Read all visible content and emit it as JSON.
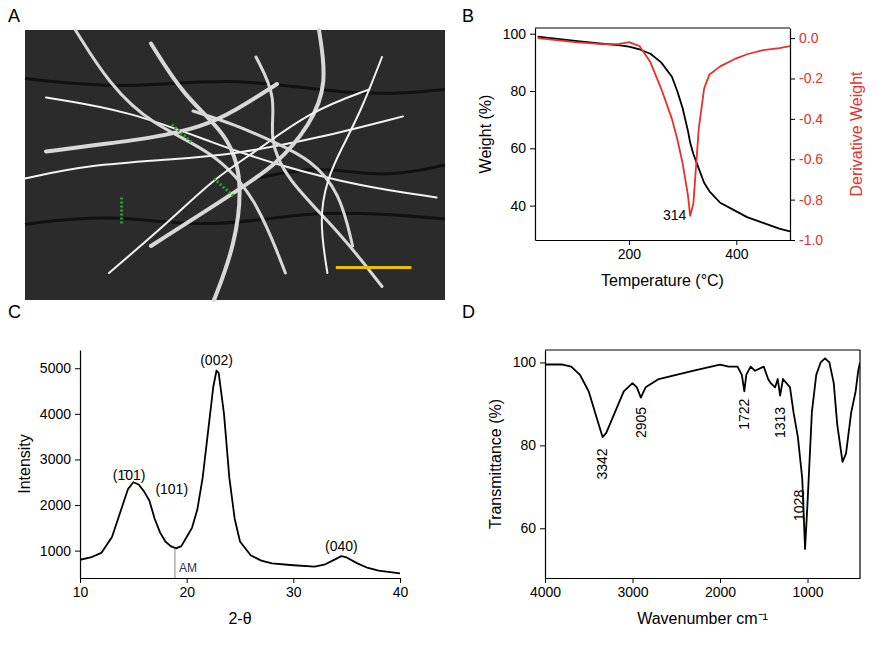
{
  "chart_data": [
    {
      "type": "image",
      "panel_label": "A"
    },
    {
      "type": "line",
      "panel_label": "B",
      "x_label": "Temperature (°C)",
      "y_label": "Weight (%)",
      "y2_label": "Derivative Weight",
      "x": [
        30,
        100,
        150,
        180,
        200,
        220,
        240,
        260,
        280,
        290,
        300,
        310,
        314,
        320,
        330,
        340,
        350,
        370,
        400,
        420,
        450,
        480,
        500
      ],
      "series": [
        {
          "color": "#000000",
          "values": [
            99,
            97.5,
            96.5,
            96,
            95.5,
            94.5,
            93,
            90,
            85,
            80,
            74,
            66,
            62,
            58,
            53,
            48,
            45,
            41,
            38,
            36,
            34,
            32,
            31
          ]
        },
        {
          "color": "#e8302c",
          "axis": "y2",
          "values": [
            0,
            -0.02,
            -0.03,
            -0.03,
            -0.02,
            -0.04,
            -0.12,
            -0.25,
            -0.4,
            -0.5,
            -0.62,
            -0.78,
            -0.88,
            -0.82,
            -0.45,
            -0.25,
            -0.18,
            -0.14,
            -0.1,
            -0.08,
            -0.06,
            -0.05,
            -0.04
          ]
        }
      ],
      "xlim": [
        25,
        500
      ],
      "xticks": [
        200,
        400
      ],
      "ylim": [
        28,
        102
      ],
      "yticks": [
        40,
        60,
        80,
        100
      ],
      "y2lim": [
        -1.0,
        0.05
      ],
      "y2ticks": [
        {
          "value": 0,
          "label": "0.0"
        },
        -0.2,
        -0.4,
        -0.6,
        -0.8,
        {
          "value": -1,
          "label": "-1.0"
        }
      ],
      "annotations": [
        {
          "text": "314",
          "x": 307,
          "y": 35
        }
      ]
    },
    {
      "type": "line",
      "panel_label": "C",
      "x_label": "2-θ",
      "y_label": "Intensity",
      "x": [
        10,
        11,
        12,
        13,
        14,
        14.5,
        15,
        15.5,
        16,
        16.5,
        17,
        17.5,
        18,
        18.5,
        19,
        19.5,
        20,
        20.5,
        21,
        21.5,
        22,
        22.5,
        22.8,
        23,
        23.5,
        24,
        24.5,
        25,
        26,
        27,
        28,
        30,
        32,
        33,
        34,
        34.5,
        35,
        36,
        37,
        38,
        40
      ],
      "series": [
        {
          "color": "#000000",
          "values": [
            800,
            850,
            950,
            1300,
            2000,
            2350,
            2500,
            2450,
            2300,
            2100,
            1700,
            1400,
            1200,
            1100,
            1050,
            1100,
            1300,
            1500,
            1900,
            2600,
            3600,
            4600,
            4950,
            4900,
            4000,
            2600,
            1700,
            1200,
            900,
            780,
            720,
            680,
            650,
            700,
            820,
            880,
            850,
            720,
            620,
            560,
            500
          ]
        }
      ],
      "xlim": [
        10,
        40
      ],
      "xticks": [
        10,
        20,
        30,
        40
      ],
      "ylim": [
        400,
        5400
      ],
      "yticks": [
        1000,
        2000,
        3000,
        4000,
        5000
      ],
      "annotations": [
        {
          "text": "(1̄01)",
          "x": 14.6,
          "y": 2550
        },
        {
          "text": "(101)",
          "x": 18.6,
          "y": 2250
        },
        {
          "text": "(002)",
          "x": 22.8,
          "y": 5080
        },
        {
          "text": "(040)",
          "x": 34.5,
          "y": 1000
        },
        {
          "text": "AM",
          "x": 18.9,
          "y": 1050,
          "line": true
        }
      ]
    },
    {
      "type": "line",
      "panel_label": "D",
      "x_label": "Wavenumber cm⁻¹",
      "y_label": "Transmittance (%)",
      "x": [
        4000,
        3800,
        3700,
        3600,
        3500,
        3400,
        3342,
        3300,
        3200,
        3100,
        3000,
        2950,
        2905,
        2850,
        2700,
        2500,
        2300,
        2100,
        2000,
        1900,
        1800,
        1750,
        1722,
        1700,
        1650,
        1600,
        1500,
        1450,
        1420,
        1370,
        1340,
        1313,
        1280,
        1200,
        1160,
        1110,
        1060,
        1028,
        1000,
        950,
        900,
        850,
        800,
        750,
        700,
        660,
        620,
        600,
        560,
        530,
        500,
        450,
        420,
        400
      ],
      "series": [
        {
          "color": "#000000",
          "values": [
            99.5,
            99.5,
            99,
            97,
            93,
            86,
            82,
            83,
            88,
            93,
            95,
            94,
            91.5,
            94,
            96,
            97,
            98,
            99,
            99.5,
            99,
            99,
            97,
            93,
            97,
            99,
            98,
            99,
            96,
            95,
            94,
            96,
            92,
            96,
            94,
            88,
            82,
            72,
            55,
            66,
            88,
            97,
            100,
            101,
            100,
            95,
            85,
            79,
            76,
            78,
            83,
            88,
            93,
            98,
            100
          ]
        }
      ],
      "xlim": [
        4000,
        400
      ],
      "xticks": [
        4000,
        3000,
        2000,
        1000
      ],
      "ylim": [
        48,
        103
      ],
      "yticks": [
        60,
        80,
        100
      ],
      "annotations": [
        {
          "text": "3342",
          "x": 3342,
          "y": 80
        },
        {
          "text": "2905",
          "x": 2905,
          "y": 90
        },
        {
          "text": "1722",
          "x": 1722,
          "y": 92
        },
        {
          "text": "1313",
          "x": 1313,
          "y": 90
        },
        {
          "text": "1028",
          "x": 1100,
          "y": 70
        }
      ]
    }
  ]
}
